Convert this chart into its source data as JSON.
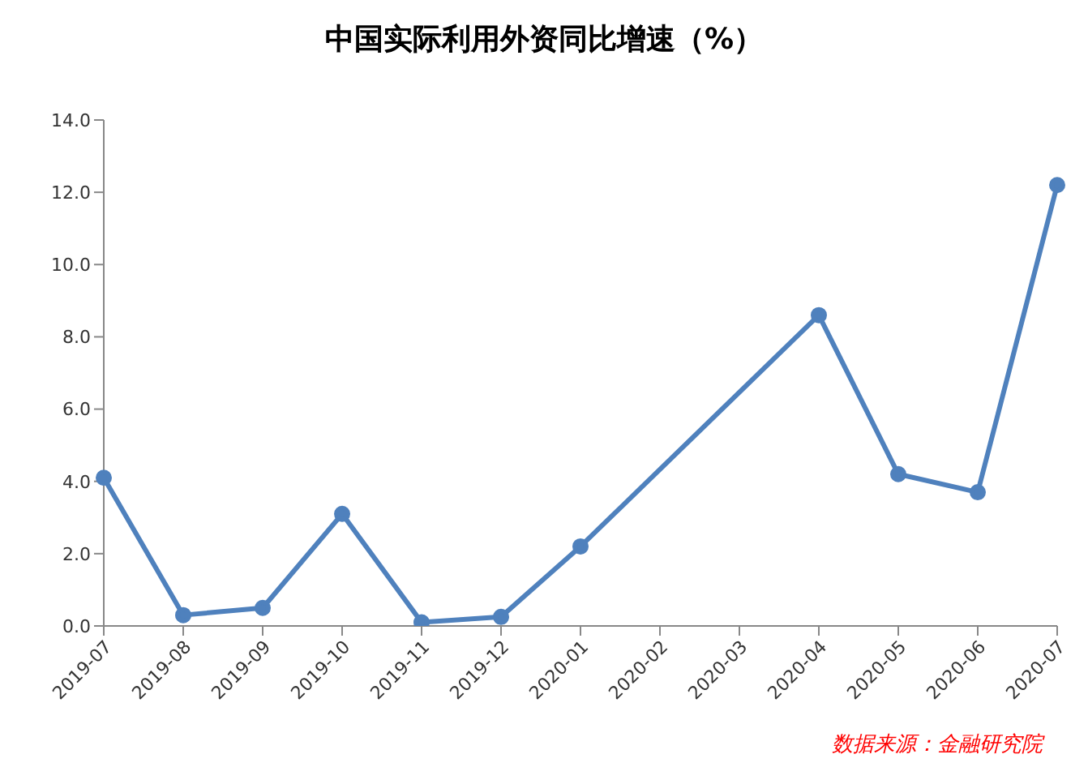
{
  "chart_data": {
    "type": "line",
    "title": "中国实际利用外资同比增速（%）",
    "categories": [
      "2019-07",
      "2019-08",
      "2019-09",
      "2019-10",
      "2019-11",
      "2019-12",
      "2020-01",
      "2020-02",
      "2020-03",
      "2020-04",
      "2020-05",
      "2020-06",
      "2020-07"
    ],
    "series": [
      {
        "color": "#4f81bd",
        "values": [
          4.1,
          0.3,
          0.5,
          3.1,
          0.1,
          0.25,
          2.2,
          null,
          null,
          8.6,
          4.2,
          3.7,
          12.2
        ]
      }
    ],
    "ylim": [
      0,
      14
    ],
    "yticks": [
      {
        "value": 0,
        "label": "0.0"
      },
      {
        "value": 2,
        "label": "2.0"
      },
      {
        "value": 4,
        "label": "4.0"
      },
      {
        "value": 6,
        "label": "6.0"
      },
      {
        "value": 8,
        "label": "8.0"
      },
      {
        "value": 10,
        "label": "10.0"
      },
      {
        "value": 12,
        "label": "12.0"
      },
      {
        "value": 14,
        "label": "14.0"
      }
    ],
    "marker": "circle",
    "line_style": "solid",
    "grid": false,
    "legend": false,
    "annotations": [
      "数据来源：金融研究院"
    ]
  }
}
